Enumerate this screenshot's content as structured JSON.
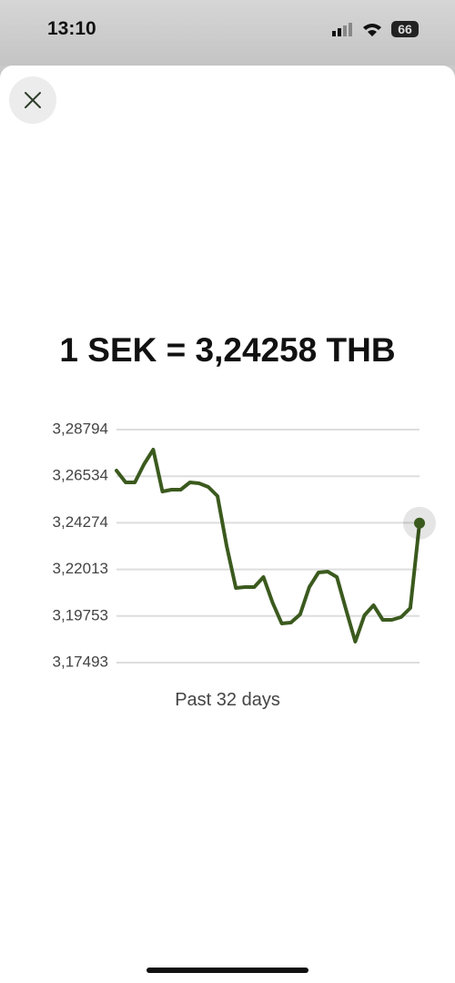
{
  "status_bar": {
    "time": "13:10",
    "battery": "66"
  },
  "chart_data": {
    "type": "line",
    "title": "1 SEK = 3,24258 THB",
    "subtitle": "Past 32 days",
    "series": [
      {
        "color": "#3b5a1e",
        "values": [
          3.26808,
          3.26234,
          3.26234,
          3.27117,
          3.27823,
          3.25792,
          3.25881,
          3.25881,
          3.26234,
          3.2619,
          3.26013,
          3.25572,
          3.23144,
          3.21114,
          3.21158,
          3.21158,
          3.21643,
          3.20407,
          3.19392,
          3.19436,
          3.19834,
          3.21158,
          3.21864,
          3.21908,
          3.21643,
          3.20054,
          3.18509,
          3.19789,
          3.20275,
          3.19569,
          3.19569,
          3.19701,
          3.20143,
          3.24258
        ]
      }
    ],
    "ylim": [
      3.17493,
      3.28794
    ],
    "yticks": [
      {
        "value": 3.28794,
        "label": "3,28794"
      },
      {
        "value": 3.26534,
        "label": "3,26534"
      },
      {
        "value": 3.24274,
        "label": "3,24274"
      },
      {
        "value": 3.22013,
        "label": "3,22013"
      },
      {
        "value": 3.19753,
        "label": "3,19753"
      },
      {
        "value": 3.17493,
        "label": "3,17493"
      }
    ],
    "grid": true
  }
}
